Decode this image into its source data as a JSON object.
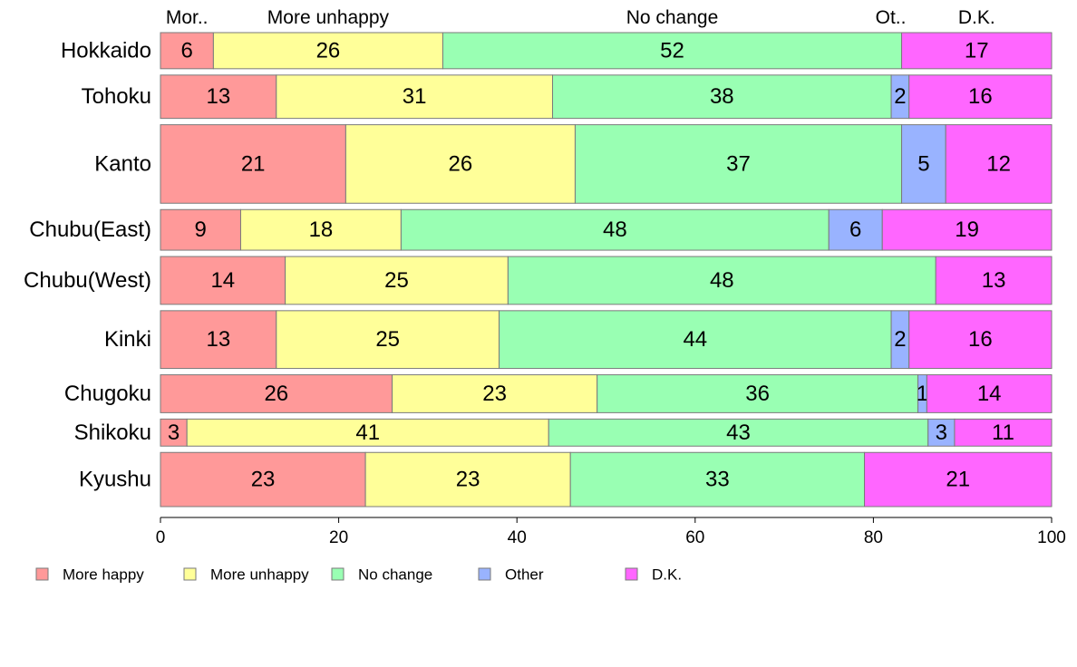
{
  "chart_data": {
    "type": "bar",
    "orientation": "horizontal",
    "stacked": true,
    "variable_width": true,
    "categories": [
      "Hokkaido",
      "Tohoku",
      "Kanto",
      "Chubu(East)",
      "Chubu(West)",
      "Kinki",
      "Chugoku",
      "Shikoku",
      "Kyushu"
    ],
    "series": [
      {
        "name": "More happy",
        "color": "#ff9999",
        "values": [
          6,
          13,
          21,
          9,
          14,
          13,
          26,
          3,
          23
        ]
      },
      {
        "name": "More unhappy",
        "color": "#ffff99",
        "values": [
          26,
          31,
          26,
          18,
          25,
          25,
          23,
          41,
          23
        ]
      },
      {
        "name": "No change",
        "color": "#99ffb3",
        "values": [
          52,
          38,
          37,
          48,
          48,
          44,
          36,
          43,
          33
        ]
      },
      {
        "name": "Other",
        "color": "#99b3ff",
        "values": [
          0,
          2,
          5,
          6,
          0,
          2,
          1,
          3,
          0
        ]
      },
      {
        "name": "D.K.",
        "color": "#ff66ff",
        "values": [
          17,
          16,
          12,
          19,
          13,
          16,
          14,
          11,
          21
        ]
      }
    ],
    "bar_relative_widths": [
      40,
      48,
      87,
      45,
      53,
      64,
      42,
      30,
      60
    ],
    "top_labels": [
      "Mor..",
      "More unhappy",
      "No change",
      "Ot..",
      "D.K."
    ],
    "x_ticks": [
      "0",
      "20",
      "40",
      "60",
      "80",
      "100"
    ],
    "xlim": [
      0,
      100
    ],
    "grid": false,
    "legend_position": "bottom-left"
  }
}
